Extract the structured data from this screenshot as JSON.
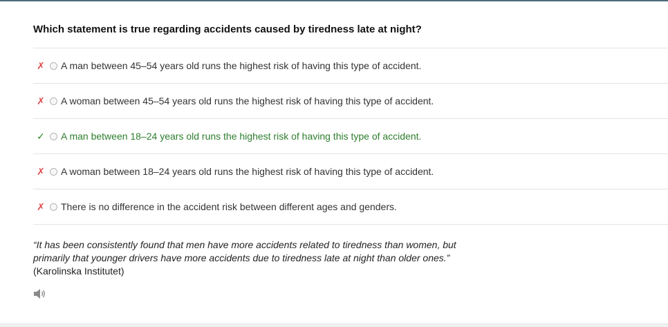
{
  "question": "Which statement is true regarding accidents caused by tiredness late at night?",
  "options": [
    {
      "mark": "✗",
      "text": "A man between 45–54 years old runs the highest risk of having this type of accident."
    },
    {
      "mark": "✗",
      "text": "A woman between 45–54 years old runs the highest risk of having this type of accident."
    },
    {
      "mark": "✓",
      "text": "A man between 18–24 years old runs the highest risk of having this type of accident."
    },
    {
      "mark": "✗",
      "text": "A woman between 18–24 years old runs the highest risk of having this type of accident."
    },
    {
      "mark": "✗",
      "text": "There is no difference in the accident risk between different ages and genders."
    }
  ],
  "correct_index": 2,
  "explanation": {
    "quote": "“It has been consistently found that men have more accidents related to tiredness than women, but primarily that younger drivers have more accidents due to tiredness late at night than older ones.”",
    "source": "(Karolinska Institutet)"
  },
  "icons": {
    "audio": "speaker-icon"
  },
  "colors": {
    "wrong": "#e04a4a",
    "correct": "#2e7d2e"
  }
}
